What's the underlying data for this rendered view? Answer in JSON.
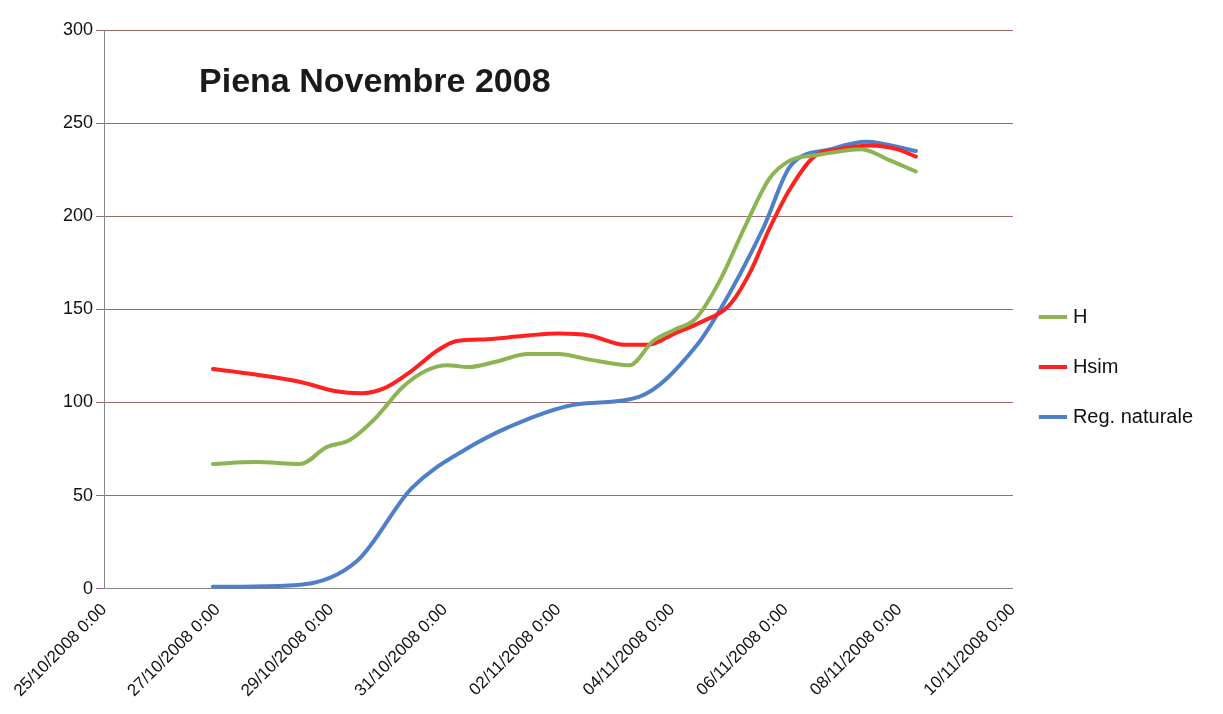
{
  "chart_data": {
    "type": "line",
    "title": "Piena Novembre 2008",
    "xlim": [
      "2008-10-25",
      "2008-11-10"
    ],
    "xticks": [
      {
        "value": "2008-10-25",
        "label": "25/10/2008 0:00"
      },
      {
        "value": "2008-10-27",
        "label": "27/10/2008 0:00"
      },
      {
        "value": "2008-10-29",
        "label": "29/10/2008 0:00"
      },
      {
        "value": "2008-10-31",
        "label": "31/10/2008 0:00"
      },
      {
        "value": "2008-11-02",
        "label": "02/11/2008 0:00"
      },
      {
        "value": "2008-11-04",
        "label": "04/11/2008 0:00"
      },
      {
        "value": "2008-11-06",
        "label": "06/11/2008 0:00"
      },
      {
        "value": "2008-11-08",
        "label": "08/11/2008 0:00"
      },
      {
        "value": "2008-11-10",
        "label": "10/11/2008 0:00"
      }
    ],
    "ylim": [
      0,
      300
    ],
    "yticks": [
      0,
      50,
      100,
      150,
      200,
      250,
      300
    ],
    "grid": "y",
    "legend": "right",
    "marker": "none",
    "line_style": "solid",
    "series": [
      {
        "name": "H",
        "color": "#8db352",
        "x": [
          "2008-10-26T22:00",
          "2008-10-27T16:00",
          "2008-10-28T11:00",
          "2008-10-28T22:00",
          "2008-10-29T08:00",
          "2008-10-29T19:00",
          "2008-10-30T06:00",
          "2008-10-30T16:00",
          "2008-10-31T01:00",
          "2008-10-31T10:00",
          "2008-10-31T22:00",
          "2008-11-01T11:00",
          "2008-11-02T00:00",
          "2008-11-02T13:00",
          "2008-11-03T06:00",
          "2008-11-03T16:00",
          "2008-11-04T01:00",
          "2008-11-04T10:00",
          "2008-11-04T20:00",
          "2008-11-05T07:00",
          "2008-11-05T17:00",
          "2008-11-06T02:00",
          "2008-11-06T14:00",
          "2008-11-07T08:00",
          "2008-11-07T20:00",
          "2008-11-08T07:00"
        ],
        "values": [
          67,
          68,
          67,
          76,
          80,
          92,
          108,
          117,
          120,
          119,
          122,
          126,
          126,
          123,
          120,
          133,
          139,
          145,
          165,
          195,
          220,
          230,
          233,
          236,
          230,
          224
        ]
      },
      {
        "name": "Hsim",
        "color": "#ff2020",
        "x": [
          "2008-10-26T22:00",
          "2008-10-27T16:00",
          "2008-10-28T11:00",
          "2008-10-29T02:00",
          "2008-10-29T13:00",
          "2008-10-29T23:00",
          "2008-10-30T10:00",
          "2008-10-30T21:00",
          "2008-10-31T05:00",
          "2008-10-31T18:00",
          "2008-11-01T11:00",
          "2008-11-02T00:00",
          "2008-11-02T13:00",
          "2008-11-03T04:00",
          "2008-11-03T14:00",
          "2008-11-04T01:00",
          "2008-11-04T12:00",
          "2008-11-05T00:00",
          "2008-11-05T09:00",
          "2008-11-05T17:00",
          "2008-11-06T02:00",
          "2008-11-06T12:00",
          "2008-11-06T23:00",
          "2008-11-07T12:00",
          "2008-11-07T23:00",
          "2008-11-08T07:00"
        ],
        "values": [
          118,
          115,
          111,
          106,
          105,
          108,
          117,
          128,
          133,
          134,
          136,
          137,
          136,
          131,
          131,
          137,
          143,
          152,
          170,
          193,
          215,
          232,
          236,
          238,
          236,
          232
        ]
      },
      {
        "name": "Reg. naturale",
        "color": "#4f7fc8",
        "x": [
          "2008-10-26T22:00",
          "2008-10-28T10:00",
          "2008-10-29T11:00",
          "2008-10-30T10:00",
          "2008-10-31T09:00",
          "2008-11-01T09:00",
          "2008-11-02T08:00",
          "2008-11-03T10:00",
          "2008-11-04T10:00",
          "2008-11-05T00:00",
          "2008-11-05T15:00",
          "2008-11-06T02:00",
          "2008-11-06T19:00",
          "2008-11-07T10:00",
          "2008-11-08T07:00"
        ],
        "values": [
          1,
          2,
          15,
          54,
          75,
          90,
          99,
          103,
          130,
          158,
          195,
          227,
          236,
          240,
          235
        ]
      }
    ]
  }
}
